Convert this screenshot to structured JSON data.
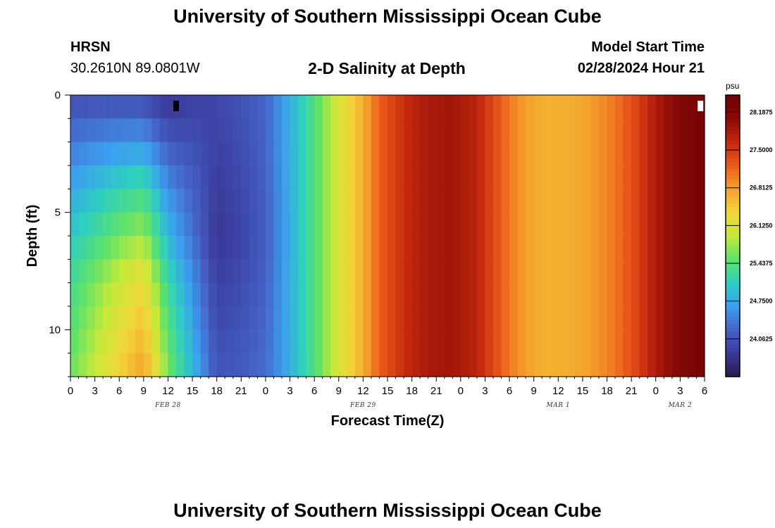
{
  "header": {
    "title": "University of Southern Mississippi Ocean Cube",
    "station": "HRSN",
    "coordinates": "30.2610N  89.0801W",
    "model_start_label": "Model Start Time",
    "model_start_value": "02/28/2024 Hour 21"
  },
  "footer": {
    "title": "University of Southern Mississippi Ocean Cube"
  },
  "chart_data": {
    "type": "heatmap",
    "title": "2-D Salinity at Depth",
    "xlabel": "Forecast Time(Z)",
    "ylabel": "Depth (ft)",
    "x_tick_labels": [
      "0",
      "3",
      "6",
      "9",
      "12",
      "15",
      "18",
      "21",
      "0",
      "3",
      "6",
      "9",
      "12",
      "15",
      "18",
      "21",
      "0",
      "3",
      "6",
      "9",
      "12",
      "15",
      "18",
      "21",
      "0",
      "3",
      "6"
    ],
    "x_date_labels": [
      {
        "label": "FEB 28",
        "hour": 12
      },
      {
        "label": "FEB 29",
        "hour": 36
      },
      {
        "label": "MAR 1",
        "hour": 60
      },
      {
        "label": "MAR 2",
        "hour": 75
      }
    ],
    "xlim": [
      0,
      78
    ],
    "y_ticks": [
      0,
      5,
      10
    ],
    "ylim": [
      0,
      12
    ],
    "y_inverted": true,
    "colorbar": {
      "unit": "psu",
      "min": 23.375,
      "max": 28.5,
      "tick_values": [
        28.1875,
        24.0625,
        24.75,
        25.4375,
        26.125,
        26.8125,
        27.5
      ],
      "tick_labels": [
        "28.1875",
        "24.0625",
        "24.7500",
        "25.4375",
        "26.1250",
        "26.8125",
        "27.5000"
      ],
      "colors": [
        "#2a1a4a",
        "#3a3a9a",
        "#4563c8",
        "#3c9ef0",
        "#2ecfc0",
        "#5ee26a",
        "#c6ea3a",
        "#f2d53a",
        "#f6a12c",
        "#ea5a1a",
        "#c4280e",
        "#8a0a06",
        "#6e0202"
      ]
    },
    "time_series_surface_psu": [
      {
        "hour": 0,
        "value": 24.0
      },
      {
        "hour": 6,
        "value": 24.0
      },
      {
        "hour": 9,
        "value": 23.95
      },
      {
        "hour": 12,
        "value": 23.7
      },
      {
        "hour": 15,
        "value": 23.85
      },
      {
        "hour": 18,
        "value": 23.95
      },
      {
        "hour": 21,
        "value": 24.05
      },
      {
        "hour": 24,
        "value": 24.25
      },
      {
        "hour": 27,
        "value": 24.8
      },
      {
        "hour": 30,
        "value": 25.4
      },
      {
        "hour": 33,
        "value": 26.1
      },
      {
        "hour": 36,
        "value": 26.7
      },
      {
        "hour": 38,
        "value": 27.2
      },
      {
        "hour": 41,
        "value": 27.6
      },
      {
        "hour": 44,
        "value": 27.85
      },
      {
        "hour": 47,
        "value": 27.9
      },
      {
        "hour": 50,
        "value": 27.7
      },
      {
        "hour": 53,
        "value": 27.2
      },
      {
        "hour": 55,
        "value": 26.9
      },
      {
        "hour": 58,
        "value": 26.65
      },
      {
        "hour": 62,
        "value": 26.7
      },
      {
        "hour": 66,
        "value": 26.95
      },
      {
        "hour": 69,
        "value": 27.3
      },
      {
        "hour": 72,
        "value": 27.8
      },
      {
        "hour": 75,
        "value": 28.2
      },
      {
        "hour": 78,
        "value": 28.4
      }
    ],
    "depth_profile_psu": [
      {
        "hour": 9,
        "values": [
          {
            "depth": 0,
            "value": 23.95
          },
          {
            "depth": 4,
            "value": 25.3
          },
          {
            "depth": 8,
            "value": 26.3
          },
          {
            "depth": 12,
            "value": 26.8
          }
        ]
      },
      {
        "hour": 18,
        "values": [
          {
            "depth": 0,
            "value": 23.95
          },
          {
            "depth": 6,
            "value": 23.75
          },
          {
            "depth": 12,
            "value": 24.1
          }
        ]
      }
    ],
    "markers": [
      {
        "hour": 13,
        "depth": 0.3,
        "color": "#000000"
      },
      {
        "hour": 77.5,
        "depth": 0.3,
        "color": "#ffffff"
      }
    ]
  }
}
